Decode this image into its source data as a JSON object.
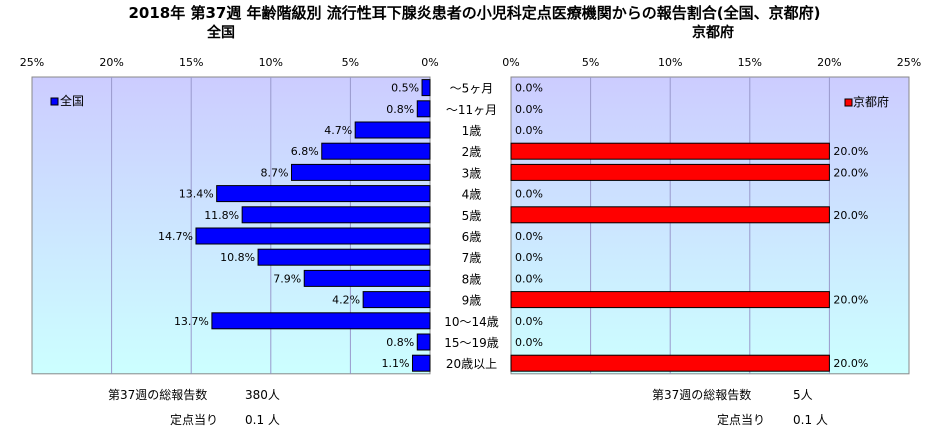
{
  "title": "2018年 第37週 年齢階級別 流行性耳下腺炎患者の小児科定点医療機関からの報告割合(全国、京都府)",
  "left_panel": {
    "title": "全国",
    "legend": "全国",
    "axis_ticks": [
      "25%",
      "20%",
      "15%",
      "10%",
      "5%",
      "0%"
    ],
    "footer": {
      "total_label": "第37週の総報告数",
      "total_value": "380人",
      "per_label": "定点当り",
      "per_value": "0.1 人"
    }
  },
  "right_panel": {
    "title": "京都府",
    "legend": "京都府",
    "axis_ticks": [
      "0%",
      "5%",
      "10%",
      "15%",
      "20%",
      "25%"
    ],
    "footer": {
      "total_label": "第37週の総報告数",
      "total_value": "5人",
      "per_label": "定点当り",
      "per_value": "0.1 人"
    }
  },
  "chart_data": [
    {
      "type": "bar",
      "orientation": "horizontal",
      "direction": "right-to-left",
      "title": "全国",
      "categories": [
        "〜5ヶ月",
        "〜11ヶ月",
        "1歳",
        "2歳",
        "3歳",
        "4歳",
        "5歳",
        "6歳",
        "7歳",
        "8歳",
        "9歳",
        "10〜14歳",
        "15〜19歳",
        "20歳以上"
      ],
      "values": [
        0.5,
        0.8,
        4.7,
        6.8,
        8.7,
        13.4,
        11.8,
        14.7,
        10.8,
        7.9,
        4.2,
        13.7,
        0.8,
        1.1
      ],
      "labels": [
        "0.5%",
        "0.8%",
        "4.7%",
        "6.8%",
        "8.7%",
        "13.4%",
        "11.8%",
        "14.7%",
        "10.8%",
        "7.9%",
        "4.2%",
        "13.7%",
        "0.8%",
        "1.1%"
      ],
      "unit": "%",
      "xlim": [
        0,
        25
      ],
      "legend_position": "top-left",
      "grid": true,
      "color": "#0000FF"
    },
    {
      "type": "bar",
      "orientation": "horizontal",
      "direction": "left-to-right",
      "title": "京都府",
      "categories": [
        "〜5ヶ月",
        "〜11ヶ月",
        "1歳",
        "2歳",
        "3歳",
        "4歳",
        "5歳",
        "6歳",
        "7歳",
        "8歳",
        "9歳",
        "10〜14歳",
        "15〜19歳",
        "20歳以上"
      ],
      "values": [
        0.0,
        0.0,
        0.0,
        20.0,
        20.0,
        0.0,
        20.0,
        0.0,
        0.0,
        0.0,
        20.0,
        0.0,
        0.0,
        20.0
      ],
      "labels": [
        "0.0%",
        "0.0%",
        "0.0%",
        "20.0%",
        "20.0%",
        "0.0%",
        "20.0%",
        "0.0%",
        "0.0%",
        "0.0%",
        "20.0%",
        "0.0%",
        "0.0%",
        "20.0%"
      ],
      "unit": "%",
      "xlim": [
        0,
        25
      ],
      "legend_position": "top-right",
      "grid": true,
      "color": "#FF0000"
    }
  ],
  "colors": {
    "left_bar": "#0000FF",
    "right_bar": "#FF0000",
    "plot_top": "#CCCCFF",
    "plot_bottom": "#CCFFFF"
  }
}
